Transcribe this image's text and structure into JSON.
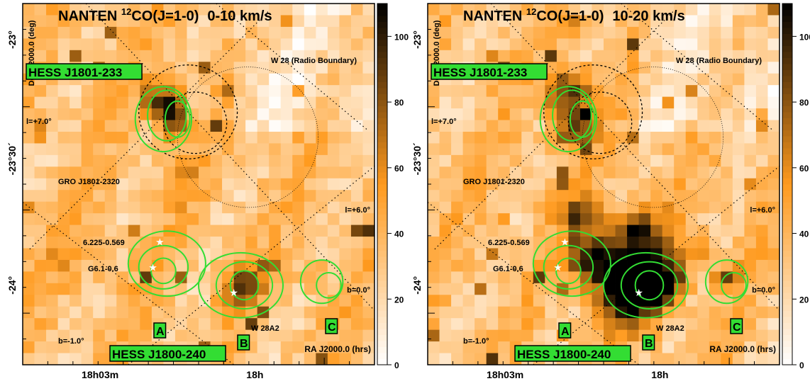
{
  "chart_data": [
    {
      "type": "heatmap",
      "title_main": "NANTEN ",
      "title_sup": "12",
      "title_rest": "CO(J=1-0)",
      "title_vel": "0-10 km/s",
      "ylabel": "Dec J2000.0 (deg)",
      "xlabel": "RA J2000.0 (hrs)",
      "xticks": [
        "18h03m",
        "18h"
      ],
      "yticks": [
        "-23°",
        "-23°30´",
        "-24°"
      ],
      "colorbar": {
        "ticks": [
          0,
          20,
          40,
          60,
          80,
          100
        ],
        "max": 110,
        "low_color": "#ffffff",
        "mid_color": "#ff9a1e",
        "high_color": "#000000"
      },
      "labels": {
        "hess_top": "HESS J1801-233",
        "hess_bottom": "HESS J1800-240",
        "w28": "W 28 (Radio Boundary)",
        "gro": "GRO J1801-2320",
        "src1": "6.225-0.569",
        "src2": "G6.1-0.6",
        "w28a2": "W 28A2",
        "l7": "l=+7.0°",
        "l6": "l=+6.0°",
        "b0": "b=0.0°",
        "bm1": "b=-1.0°",
        "A": "A",
        "B": "B",
        "C": "C"
      }
    },
    {
      "type": "heatmap",
      "title_main": "NANTEN ",
      "title_sup": "12",
      "title_rest": "CO(J=1-0)",
      "title_vel": "10-20 km/s",
      "ylabel": "Dec J2000.0 (deg)",
      "xlabel": "RA J2000.0 (hrs)",
      "xticks": [
        "18h03m",
        "18h"
      ],
      "yticks": [
        "-23°",
        "-23°30´",
        "-24°"
      ],
      "colorbar": {
        "ticks": [
          0,
          20,
          40,
          60,
          80,
          100
        ],
        "max": 110,
        "low_color": "#ffffff",
        "mid_color": "#ff9a1e",
        "high_color": "#000000"
      },
      "labels": {
        "hess_top": "HESS J1801-233",
        "hess_bottom": "HESS J1800-240",
        "w28": "W 28 (Radio Boundary)",
        "gro": "GRO J1801-2320",
        "src1": "6.225-0.569",
        "src2": "G6.1-0.6",
        "w28a2": "W 28A2",
        "l7": "l=+7.0°",
        "l6": "l=+6.0°",
        "b0": "b=0.0°",
        "bm1": "b=-1.0°",
        "A": "A",
        "B": "B",
        "C": "C"
      }
    }
  ]
}
